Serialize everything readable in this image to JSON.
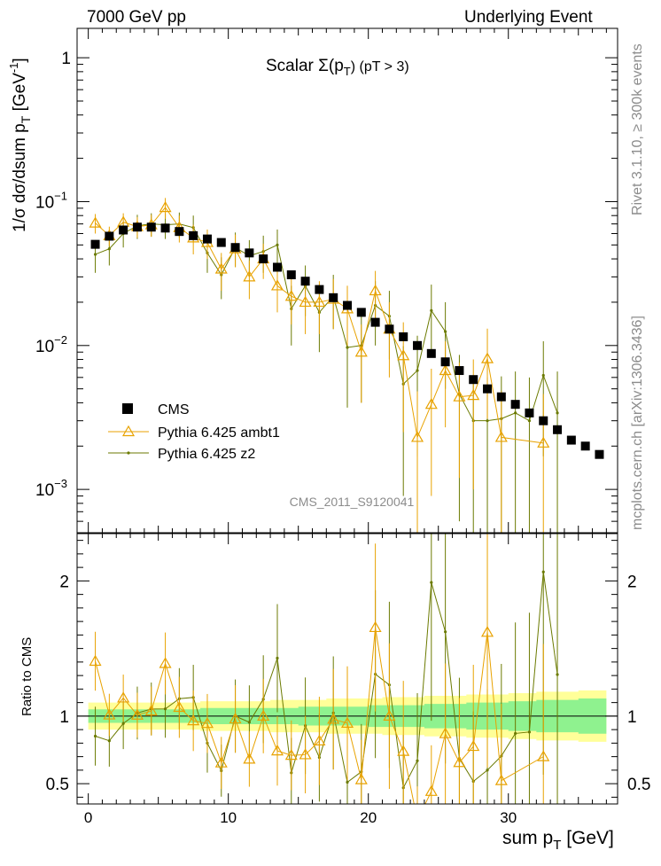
{
  "header": {
    "left": "7000 GeV pp",
    "right": "Underlying Event"
  },
  "side_labels": {
    "rivet": "Rivet 3.1.10, ≥ 300k events",
    "mcplots": "mcplots.cern.ch [arXiv:1306.3436]"
  },
  "chart_data": {
    "type": "scatter",
    "title_main": "Scalar Σ(p",
    "title_sub": "T",
    "title_end": ") (pT >  3)",
    "watermark": "CMS_2011_S9120041",
    "xlabel_main": "sum p",
    "xlabel_sub": "T",
    "xlabel_end": " [GeV]",
    "ylabel_main": "1/σ dσ/dsum p",
    "ylabel_sub": "T",
    "ylabel_end": " [GeV",
    "ylabel_sup": "-1",
    "ylabel_close": "]",
    "ratio_ylabel": "Ratio to CMS",
    "xlim": [
      -0.8,
      37.8
    ],
    "ylim": [
      0.0005,
      1.6
    ],
    "yscale": "log",
    "ratio_ylim": [
      0.35,
      2.35
    ],
    "x_ticks": [
      0,
      10,
      20,
      30
    ],
    "y_ticks": [
      {
        "v": 1,
        "text": "1"
      },
      {
        "v": 0.1,
        "base": "10",
        "exp": "−1"
      },
      {
        "v": 0.01,
        "base": "10",
        "exp": "−2"
      },
      {
        "v": 0.001,
        "base": "10",
        "exp": "−3"
      }
    ],
    "ratio_ticks": [
      0.5,
      1,
      2
    ],
    "legend": [
      {
        "name": "CMS",
        "marker": "square"
      },
      {
        "name": "Pythia 6.425 ambt1",
        "marker": "triangle"
      },
      {
        "name": "Pythia 6.425 z2",
        "marker": "dot"
      }
    ],
    "colors": {
      "cms": "#000000",
      "ambt1": "#e8a200",
      "z2": "#6b7a00",
      "band_inner": "#8ff28f",
      "band_outer": "#ffff99",
      "sidetext": "#8c8c8c"
    },
    "cms": {
      "x": [
        0.5,
        1.5,
        2.5,
        3.5,
        4.5,
        5.5,
        6.5,
        7.5,
        8.5,
        9.5,
        10.5,
        11.5,
        12.5,
        13.5,
        14.5,
        15.5,
        16.5,
        17.5,
        18.5,
        19.5,
        20.5,
        21.5,
        22.5,
        23.5,
        24.5,
        25.5,
        26.5,
        27.5,
        28.5,
        29.5,
        30.5,
        31.5,
        32.5,
        33.5,
        34.5,
        35.5,
        36.5
      ],
      "y": [
        0.0505,
        0.0575,
        0.0635,
        0.0665,
        0.0665,
        0.0655,
        0.062,
        0.058,
        0.055,
        0.052,
        0.048,
        0.044,
        0.04,
        0.035,
        0.031,
        0.028,
        0.0245,
        0.0215,
        0.019,
        0.017,
        0.0145,
        0.013,
        0.0115,
        0.01,
        0.0088,
        0.0077,
        0.0067,
        0.0058,
        0.005,
        0.0044,
        0.0039,
        0.0034,
        0.003,
        0.0026,
        0.0022,
        0.002,
        0.00175
      ],
      "rel_unc": [
        0.05,
        0.05,
        0.05,
        0.05,
        0.05,
        0.05,
        0.05,
        0.05,
        0.06,
        0.06,
        0.06,
        0.06,
        0.06,
        0.06,
        0.06,
        0.07,
        0.07,
        0.07,
        0.07,
        0.07,
        0.08,
        0.08,
        0.08,
        0.08,
        0.09,
        0.09,
        0.09,
        0.1,
        0.1,
        0.1,
        0.11,
        0.11,
        0.12,
        0.12,
        0.12,
        0.13,
        0.13
      ],
      "rel_unc_total": [
        0.1,
        0.1,
        0.1,
        0.1,
        0.1,
        0.1,
        0.1,
        0.1,
        0.11,
        0.11,
        0.11,
        0.11,
        0.11,
        0.12,
        0.12,
        0.12,
        0.12,
        0.13,
        0.13,
        0.13,
        0.13,
        0.14,
        0.14,
        0.14,
        0.15,
        0.15,
        0.15,
        0.16,
        0.16,
        0.16,
        0.17,
        0.17,
        0.18,
        0.18,
        0.18,
        0.19,
        0.19
      ]
    },
    "ambt1": {
      "x": [
        0.5,
        1.5,
        2.5,
        3.5,
        4.5,
        5.5,
        6.5,
        7.5,
        8.5,
        9.5,
        10.5,
        11.5,
        12.5,
        13.5,
        14.5,
        15.5,
        16.5,
        17.5,
        18.5,
        19.5,
        20.5,
        21.5,
        22.5,
        23.5,
        24.5,
        25.5,
        26.5,
        27.5,
        28.5,
        29.5,
        32.5
      ],
      "y": [
        0.071,
        0.058,
        0.072,
        0.067,
        0.069,
        0.091,
        0.066,
        0.056,
        0.052,
        0.034,
        0.047,
        0.03,
        0.04,
        0.026,
        0.022,
        0.02,
        0.02,
        0.021,
        0.018,
        0.009,
        0.024,
        0.013,
        0.0085,
        0.0023,
        0.0039,
        0.0067,
        0.0044,
        0.0045,
        0.0081,
        0.0023,
        0.0021
      ],
      "err": [
        0.011,
        0.009,
        0.011,
        0.011,
        0.012,
        0.015,
        0.014,
        0.013,
        0.012,
        0.01,
        0.012,
        0.009,
        0.011,
        0.009,
        0.008,
        0.008,
        0.008,
        0.008,
        0.008,
        0.005,
        0.009,
        0.007,
        0.006,
        0.0025,
        0.003,
        0.004,
        0.0032,
        0.0035,
        0.005,
        0.0025,
        0.0025
      ]
    },
    "z2": {
      "x": [
        0.5,
        1.5,
        2.5,
        3.5,
        4.5,
        5.5,
        6.5,
        7.5,
        8.5,
        9.5,
        10.5,
        11.5,
        12.5,
        13.5,
        14.5,
        15.5,
        16.5,
        17.5,
        18.5,
        19.5,
        20.5,
        21.5,
        22.5,
        23.5,
        24.5,
        25.5,
        26.5,
        27.5,
        28.5,
        29.5,
        30.5,
        31.5,
        32.5,
        33.5
      ],
      "y": [
        0.043,
        0.047,
        0.06,
        0.068,
        0.07,
        0.069,
        0.07,
        0.066,
        0.044,
        0.031,
        0.048,
        0.042,
        0.045,
        0.05,
        0.018,
        0.026,
        0.017,
        0.022,
        0.0097,
        0.01,
        0.019,
        0.016,
        0.0054,
        0.0067,
        0.0175,
        0.0125,
        0.0046,
        0.003,
        0.003,
        0.0031,
        0.0034,
        0.003,
        0.0062,
        0.0034
      ],
      "err": [
        0.011,
        0.011,
        0.012,
        0.013,
        0.013,
        0.014,
        0.014,
        0.014,
        0.012,
        0.01,
        0.013,
        0.012,
        0.013,
        0.014,
        0.008,
        0.01,
        0.008,
        0.009,
        0.006,
        0.006,
        0.009,
        0.008,
        0.0045,
        0.005,
        0.009,
        0.0075,
        0.004,
        0.003,
        0.003,
        0.003,
        0.0032,
        0.003,
        0.0045,
        0.0032
      ]
    }
  }
}
